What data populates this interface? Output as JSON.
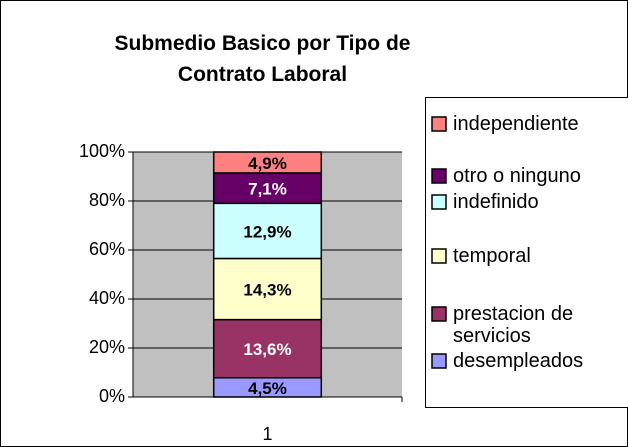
{
  "chart_data": {
    "type": "bar",
    "stacking": "percent",
    "title": "Submedio Basico por Tipo de Contrato Laboral",
    "categories": [
      "1"
    ],
    "series": [
      {
        "name": "desempleados",
        "color": "#9999ff",
        "values": [
          4.5
        ],
        "value_labels": [
          "4,5%"
        ]
      },
      {
        "name": "prestacion de servicios",
        "color": "#993366",
        "values": [
          13.6
        ],
        "value_labels": [
          "13,6%"
        ]
      },
      {
        "name": "temporal",
        "color": "#ffffcc",
        "values": [
          14.3
        ],
        "value_labels": [
          "14,3%"
        ]
      },
      {
        "name": "indefinido",
        "color": "#ccffff",
        "values": [
          12.9
        ],
        "value_labels": [
          "12,9%"
        ]
      },
      {
        "name": "otro o ninguno",
        "color": "#660066",
        "values": [
          7.1
        ],
        "value_labels": [
          "7,1%"
        ]
      },
      {
        "name": "independiente",
        "color": "#ff8080",
        "values": [
          4.9
        ],
        "value_labels": [
          "4,9%"
        ]
      }
    ],
    "ylim": [
      0,
      100
    ],
    "yticks": [
      {
        "value": 0,
        "label": "0%"
      },
      {
        "value": 20,
        "label": "20%"
      },
      {
        "value": 40,
        "label": "40%"
      },
      {
        "value": 60,
        "label": "60%"
      },
      {
        "value": 80,
        "label": "80%"
      },
      {
        "value": 100,
        "label": "100%"
      }
    ],
    "plot_background": "#c0c0c0",
    "legend": "right"
  }
}
